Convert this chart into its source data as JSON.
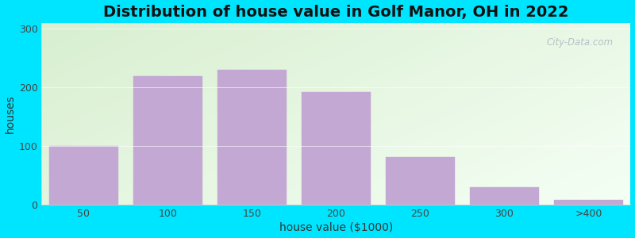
{
  "title": "Distribution of house value in Golf Manor, OH in 2022",
  "xlabel": "house value ($1000)",
  "ylabel": "houses",
  "bar_heights": [
    100,
    220,
    230,
    193,
    82,
    30,
    8
  ],
  "bar_labels": [
    "50",
    "100",
    "150",
    "200",
    "250",
    "300",
    ">400"
  ],
  "bar_color": "#c4a8d4",
  "bar_edgecolor": "#c4a8d4",
  "yticks": [
    0,
    100,
    200,
    300
  ],
  "ylim": [
    0,
    310
  ],
  "outer_bg": "#00e5ff",
  "grad_topleft": "#d8efd0",
  "grad_bottomright": "#f5fff5",
  "title_fontsize": 14,
  "label_fontsize": 10,
  "tick_fontsize": 9,
  "watermark": "City-Data.com",
  "bar_width": 0.82,
  "figsize": [
    8.0,
    3.0
  ],
  "dpi": 100
}
